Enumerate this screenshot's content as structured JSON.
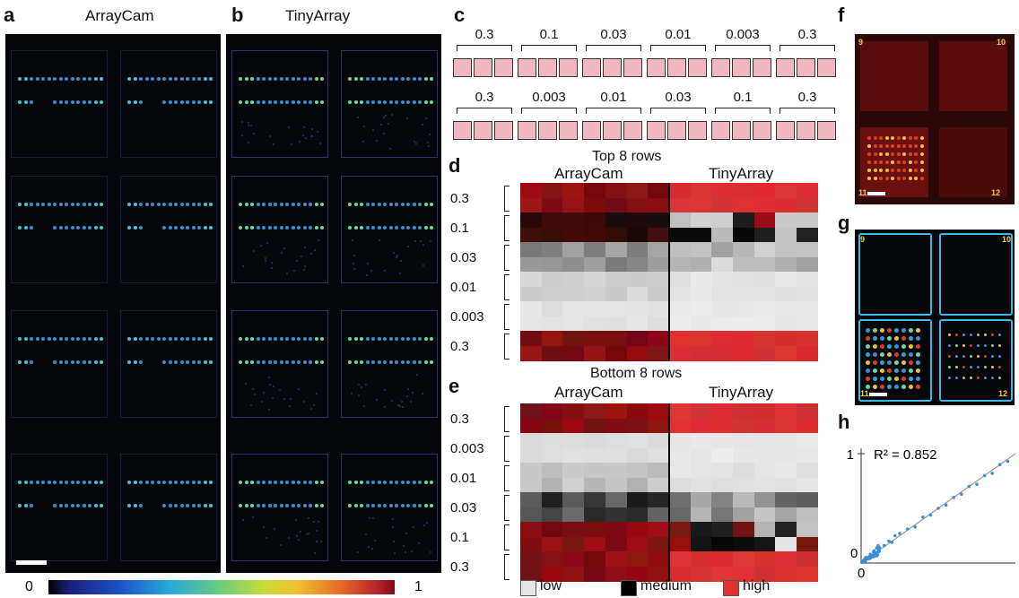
{
  "panels": {
    "a": {
      "label": "a",
      "title": "ArrayCam"
    },
    "b": {
      "label": "b",
      "title": "TinyArray"
    },
    "c": {
      "label": "c"
    },
    "d": {
      "label": "d",
      "title": "Top 8 rows",
      "col_left": "ArrayCam",
      "col_right": "TinyArray",
      "rows": [
        "0.3",
        "0.1",
        "0.03",
        "0.01",
        "0.003",
        "0.3"
      ]
    },
    "e": {
      "label": "e",
      "title": "Bottom 8 rows",
      "col_left": "ArrayCam",
      "col_right": "TinyArray",
      "rows": [
        "0.3",
        "0.003",
        "0.01",
        "0.03",
        "0.1",
        "0.3"
      ]
    },
    "f": {
      "label": "f",
      "corners": [
        "9",
        "10",
        "11",
        "12"
      ]
    },
    "g": {
      "label": "g",
      "corners": [
        "9",
        "10",
        "11",
        "12"
      ]
    },
    "h": {
      "label": "h",
      "annotation": "R² = 0.852",
      "y_tick": "1",
      "x_tick": "0",
      "y_zero": "0",
      "x_right": "1"
    }
  },
  "concentrations_top": [
    "0.3",
    "0.1",
    "0.03",
    "0.01",
    "0.003",
    "0.3"
  ],
  "concentrations_bottom": [
    "0.3",
    "0.003",
    "0.01",
    "0.03",
    "0.1",
    "0.3"
  ],
  "colorbar": {
    "min": "0",
    "max": "1"
  },
  "legend": {
    "low": "low",
    "medium": "medium",
    "high": "high"
  },
  "colors": {
    "low": "#e6e6e6",
    "medium": "#000000",
    "high": "#e03030",
    "well": "#f2b8c2",
    "scatter": "#3a8fd6"
  },
  "chart_data": {
    "type": "scatter",
    "annotation": "R² = 0.852",
    "xlim": [
      0,
      1
    ],
    "ylim": [
      0,
      1
    ],
    "x": [
      0.02,
      0.03,
      0.05,
      0.06,
      0.08,
      0.1,
      0.12,
      0.15,
      0.18,
      0.2,
      0.22,
      0.25,
      0.3,
      0.35,
      0.4,
      0.45,
      0.5,
      0.55,
      0.6,
      0.65,
      0.7,
      0.75,
      0.8,
      0.85,
      0.9,
      0.95
    ],
    "y": [
      0.03,
      0.05,
      0.04,
      0.08,
      0.1,
      0.09,
      0.14,
      0.16,
      0.2,
      0.19,
      0.25,
      0.27,
      0.31,
      0.33,
      0.42,
      0.44,
      0.5,
      0.53,
      0.6,
      0.63,
      0.7,
      0.72,
      0.8,
      0.82,
      0.9,
      0.93
    ]
  }
}
